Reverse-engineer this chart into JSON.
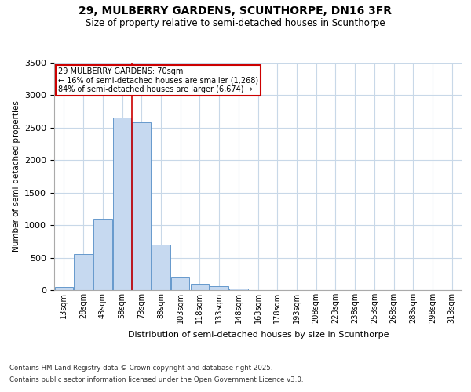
{
  "title1": "29, MULBERRY GARDENS, SCUNTHORPE, DN16 3FR",
  "title2": "Size of property relative to semi-detached houses in Scunthorpe",
  "xlabel": "Distribution of semi-detached houses by size in Scunthorpe",
  "ylabel": "Number of semi-detached properties",
  "bins": [
    "13sqm",
    "28sqm",
    "43sqm",
    "58sqm",
    "73sqm",
    "88sqm",
    "103sqm",
    "118sqm",
    "133sqm",
    "148sqm",
    "163sqm",
    "178sqm",
    "193sqm",
    "208sqm",
    "223sqm",
    "238sqm",
    "253sqm",
    "268sqm",
    "283sqm",
    "298sqm",
    "313sqm"
  ],
  "values": [
    50,
    550,
    1100,
    2650,
    2580,
    700,
    200,
    100,
    60,
    20,
    5,
    0,
    0,
    0,
    0,
    0,
    0,
    0,
    0,
    0,
    0
  ],
  "bar_color": "#c6d9f0",
  "bar_edge_color": "#6699cc",
  "marker_bin_index": 4,
  "annotation_title": "29 MULBERRY GARDENS: 70sqm",
  "annotation_line1": "← 16% of semi-detached houses are smaller (1,268)",
  "annotation_line2": "84% of semi-detached houses are larger (6,674) →",
  "annotation_box_color": "#ffffff",
  "annotation_box_edge": "#cc0000",
  "vline_color": "#cc0000",
  "ylim": [
    0,
    3500
  ],
  "yticks": [
    0,
    500,
    1000,
    1500,
    2000,
    2500,
    3000,
    3500
  ],
  "footer1": "Contains HM Land Registry data © Crown copyright and database right 2025.",
  "footer2": "Contains public sector information licensed under the Open Government Licence v3.0.",
  "bg_color": "#ffffff",
  "grid_color": "#c8d8e8"
}
